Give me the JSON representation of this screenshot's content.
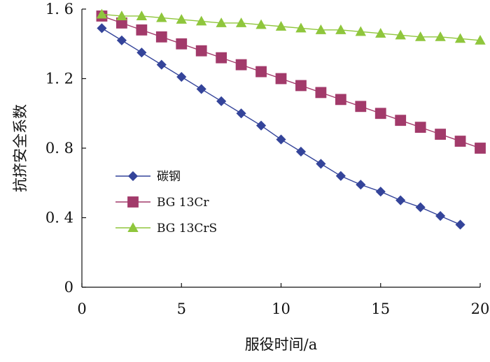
{
  "chart_data": {
    "type": "line",
    "title": "",
    "xlabel": "服役时间/a",
    "ylabel": "抗挤安全系数",
    "xlim": [
      0,
      20
    ],
    "ylim": [
      0,
      1.6
    ],
    "x_ticks": [
      0,
      5,
      10,
      15,
      20
    ],
    "x_tick_labels": [
      "0",
      "5",
      "10",
      "15",
      "20"
    ],
    "y_ticks": [
      0,
      0.4,
      0.8,
      1.2,
      1.6
    ],
    "y_tick_labels": [
      "0",
      "0. 4",
      "0. 8",
      "1. 2",
      "1. 6"
    ],
    "grid": false,
    "legend_position": "lower-left",
    "series": [
      {
        "name": "碳钢",
        "color": "#34449a",
        "marker": "diamond",
        "x": [
          1,
          2,
          3,
          4,
          5,
          6,
          7,
          8,
          9,
          10,
          11,
          12,
          13,
          14,
          15,
          16,
          17,
          18,
          19
        ],
        "y": [
          1.49,
          1.42,
          1.35,
          1.28,
          1.21,
          1.14,
          1.07,
          1.0,
          0.93,
          0.85,
          0.78,
          0.71,
          0.64,
          0.59,
          0.55,
          0.5,
          0.46,
          0.41,
          0.36
        ]
      },
      {
        "name": "BG  13Cr",
        "color": "#a23a6a",
        "marker": "square",
        "x": [
          1,
          2,
          3,
          4,
          5,
          6,
          7,
          8,
          9,
          10,
          11,
          12,
          13,
          14,
          15,
          16,
          17,
          18,
          19,
          20
        ],
        "y": [
          1.56,
          1.52,
          1.48,
          1.44,
          1.4,
          1.36,
          1.32,
          1.28,
          1.24,
          1.2,
          1.16,
          1.12,
          1.08,
          1.04,
          1.0,
          0.96,
          0.92,
          0.88,
          0.84,
          0.8
        ]
      },
      {
        "name": "BG  13CrS",
        "color": "#8fc63c",
        "marker": "triangle",
        "x": [
          1,
          2,
          3,
          4,
          5,
          6,
          7,
          8,
          9,
          10,
          11,
          12,
          13,
          14,
          15,
          16,
          17,
          18,
          19,
          20
        ],
        "y": [
          1.57,
          1.56,
          1.56,
          1.55,
          1.54,
          1.53,
          1.52,
          1.52,
          1.51,
          1.5,
          1.49,
          1.48,
          1.48,
          1.47,
          1.46,
          1.45,
          1.44,
          1.44,
          1.43,
          1.42
        ]
      }
    ]
  }
}
